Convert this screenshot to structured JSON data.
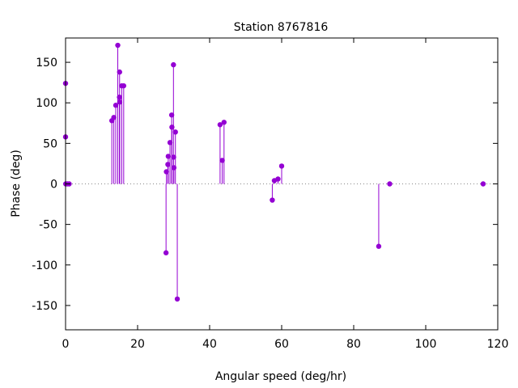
{
  "chart_data": {
    "type": "scatter",
    "style": "impulses-with-points",
    "title": "Station 8767816",
    "xlabel": "Angular speed (deg/hr)",
    "ylabel": "Phase (deg)",
    "xlim": [
      0,
      120
    ],
    "ylim": [
      -180,
      180
    ],
    "xticks": [
      0,
      20,
      40,
      60,
      80,
      100,
      120
    ],
    "yticks": [
      -150,
      -100,
      -50,
      0,
      50,
      100,
      150
    ],
    "grid": false,
    "zero_line": "dotted",
    "color": "#9400d3",
    "series": [
      {
        "x": [
          0.0,
          0.0,
          0.04,
          0.5,
          1.0,
          12.85,
          13.4,
          13.94,
          14.5,
          14.96,
          15.0,
          15.04,
          15.6,
          16.14,
          27.9,
          28.0,
          28.4,
          28.51,
          29.0,
          29.46,
          29.53,
          29.96,
          30.0,
          30.08,
          30.5,
          31.02,
          42.9,
          43.5,
          44.0,
          57.4,
          57.97,
          58.98,
          60.0,
          86.95,
          90.0,
          115.94
        ],
        "y": [
          124,
          58,
          0,
          0,
          0,
          78,
          82,
          97,
          171,
          107,
          138,
          101,
          121,
          121,
          -85,
          15,
          24,
          34,
          51,
          85,
          70,
          147,
          33,
          20,
          64,
          -142,
          73,
          29,
          76,
          -20,
          4,
          6,
          22,
          -77,
          0,
          0
        ]
      }
    ]
  }
}
